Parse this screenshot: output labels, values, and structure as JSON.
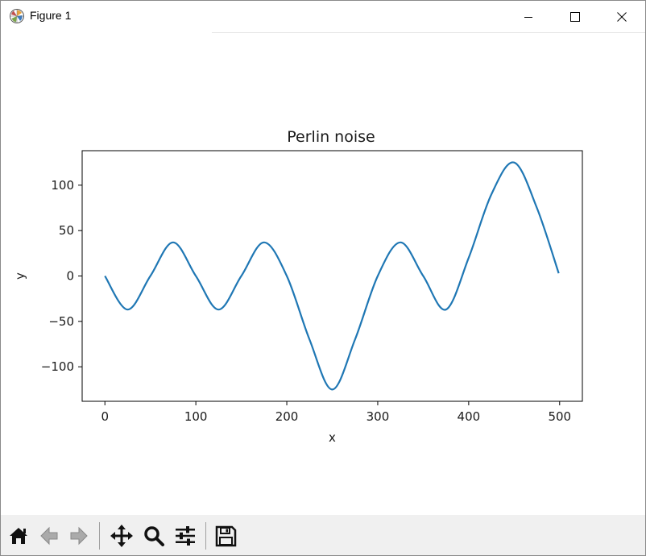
{
  "window": {
    "title": "Figure 1",
    "icons": {
      "app": "matplotlib-icon",
      "minimize": "minimize-icon",
      "maximize": "maximize-icon",
      "close": "close-icon"
    }
  },
  "chart_data": {
    "type": "line",
    "title": "Perlin noise",
    "xlabel": "x",
    "ylabel": "y",
    "xlim": [
      -25,
      525
    ],
    "ylim": [
      -138,
      138
    ],
    "xticks": [
      0,
      100,
      200,
      300,
      400,
      500
    ],
    "xtick_labels": [
      "0",
      "100",
      "200",
      "300",
      "400",
      "500"
    ],
    "yticks": [
      -100,
      -50,
      0,
      50,
      100
    ],
    "ytick_labels": [
      "−100",
      "−50",
      "0",
      "50",
      "100"
    ],
    "grid": false,
    "color": "#1f77b4",
    "series": [
      {
        "x": [
          0,
          25,
          50,
          75,
          100,
          125,
          150,
          175,
          200,
          225,
          250,
          275,
          300,
          325,
          350,
          375,
          400,
          425,
          450,
          475,
          499
        ],
        "y": [
          0,
          -37,
          0,
          37,
          0,
          -37,
          0,
          37,
          0,
          -70,
          -125,
          -70,
          0,
          37,
          0,
          -37,
          20,
          90,
          125,
          75,
          3
        ]
      }
    ]
  },
  "toolbar": {
    "buttons": [
      {
        "name": "home-button",
        "icon": "home-icon"
      },
      {
        "name": "back-button",
        "icon": "back-arrow-icon"
      },
      {
        "name": "forward-button",
        "icon": "forward-arrow-icon"
      },
      {
        "name": "pan-button",
        "icon": "pan-icon"
      },
      {
        "name": "zoom-button",
        "icon": "zoom-icon"
      },
      {
        "name": "configure-subplots-button",
        "icon": "sliders-icon"
      },
      {
        "name": "save-button",
        "icon": "save-icon"
      }
    ]
  }
}
